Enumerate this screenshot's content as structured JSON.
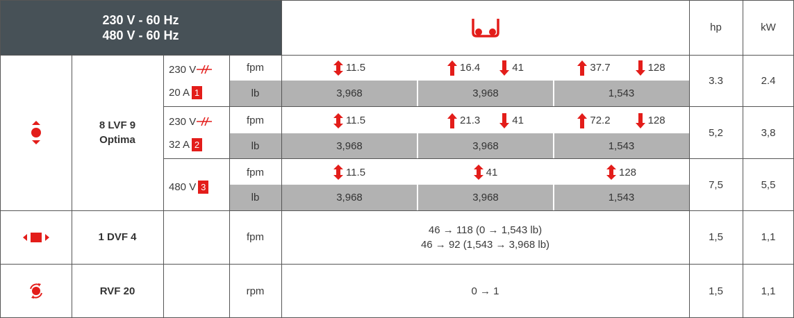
{
  "header": {
    "voltage_line1": "230 V - 60 Hz",
    "voltage_line2": "480 V - 60 Hz",
    "col_hp": "hp",
    "col_kw": "kW",
    "hook_icon": "hook-icon",
    "accent_color": "#e31d1a",
    "header_bg": "#475157"
  },
  "rows": {
    "hoist": {
      "model_line1": "8 LVF 9",
      "model_line2": "Optima",
      "icon": "up-down-point-icon",
      "groups": [
        {
          "volt": "230 V",
          "amp": "20 A",
          "badge": "1",
          "unit_speed": "fpm",
          "unit_load": "lb",
          "speeds": [
            {
              "both": "11.5"
            },
            {
              "up": "16.4",
              "down": "41"
            },
            {
              "up": "37.7",
              "down": "128"
            }
          ],
          "loads": [
            "3,968",
            "3,968",
            "1,543"
          ],
          "hp": "3.3",
          "kw": "2.4"
        },
        {
          "volt": "230 V",
          "amp": "32 A",
          "badge": "2",
          "unit_speed": "fpm",
          "unit_load": "lb",
          "speeds": [
            {
              "both": "11.5"
            },
            {
              "up": "21.3",
              "down": "41"
            },
            {
              "up": "72.2",
              "down": "128"
            }
          ],
          "loads": [
            "3,968",
            "3,968",
            "1,543"
          ],
          "hp": "5,2",
          "kw": "3,8"
        },
        {
          "volt": "480 V",
          "badge": "3",
          "unit_speed": "fpm",
          "unit_load": "lb",
          "speeds": [
            {
              "both": "11.5"
            },
            {
              "both": "41"
            },
            {
              "both": "128"
            }
          ],
          "loads": [
            "3,968",
            "3,968",
            "1,543"
          ],
          "hp": "7,5",
          "kw": "5,5"
        }
      ]
    },
    "travel": {
      "model": "1 DVF 4",
      "icon": "left-right-travel-icon",
      "unit": "fpm",
      "line1": "46 → 118 (0 → 1,543 lb)",
      "line2": "46 → 92 (1,543 → 3,968 lb)",
      "hp": "1,5",
      "kw": "1,1"
    },
    "rotation": {
      "model": "RVF 20",
      "icon": "rotation-icon",
      "unit": "rpm",
      "value": "0 → 1",
      "hp": "1,5",
      "kw": "1,1"
    }
  }
}
